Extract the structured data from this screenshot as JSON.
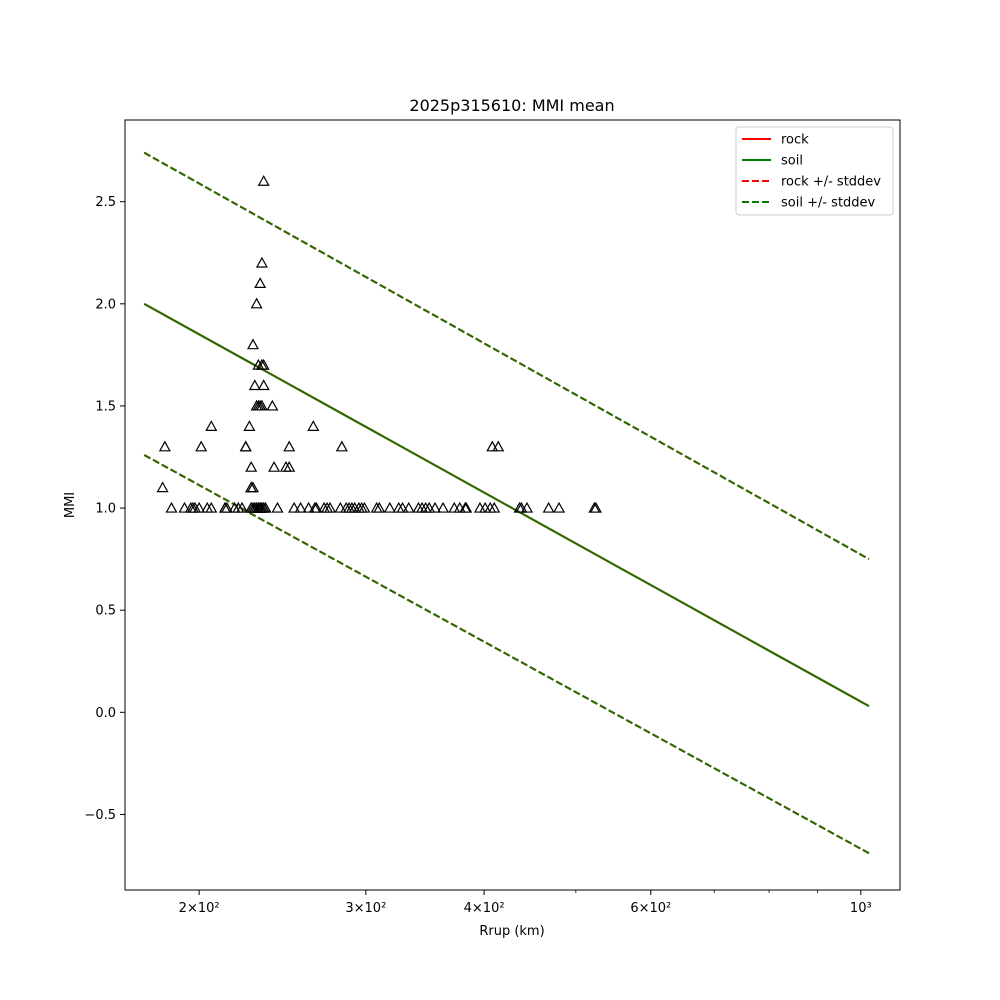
{
  "chart_data": {
    "type": "scatter",
    "title": "2025p315610: MMI mean",
    "xlabel": "Rrup (km)",
    "ylabel": "MMI",
    "xscale": "log",
    "xlim": [
      167,
      1100
    ],
    "ylim": [
      -0.87,
      2.9
    ],
    "grid": false,
    "legend_position": "top-right",
    "x_ticks": [
      {
        "value": 200,
        "label": "2×10²"
      },
      {
        "value": 300,
        "label": "3×10²"
      },
      {
        "value": 400,
        "label": "4×10²"
      },
      {
        "value": 600,
        "label": "6×10²"
      },
      {
        "value": 1000,
        "label": "10³"
      }
    ],
    "y_ticks": [
      {
        "value": -0.5,
        "label": "−0.5"
      },
      {
        "value": 0.0,
        "label": "0.0"
      },
      {
        "value": 0.5,
        "label": "0.5"
      },
      {
        "value": 1.0,
        "label": "1.0"
      },
      {
        "value": 1.5,
        "label": "1.5"
      },
      {
        "value": 2.0,
        "label": "2.0"
      },
      {
        "value": 2.5,
        "label": "2.5"
      }
    ],
    "lines": [
      {
        "name": "rock",
        "color": "#ff0000",
        "dash": false,
        "x": [
          175,
          1020
        ],
        "y": [
          2.0,
          0.03
        ]
      },
      {
        "name": "soil",
        "color": "#008000",
        "dash": false,
        "x": [
          175,
          1020
        ],
        "y": [
          2.0,
          0.03
        ]
      },
      {
        "name": "rock +/- stddev",
        "color": "#ff0000",
        "dash": true,
        "x": [
          175,
          1020
        ],
        "y": [
          2.74,
          0.75
        ]
      },
      {
        "name": "rock +/- stddev",
        "color": "#ff0000",
        "dash": true,
        "x": [
          175,
          1020
        ],
        "y": [
          1.26,
          -0.69
        ]
      },
      {
        "name": "soil +/- stddev",
        "color": "#008000",
        "dash": true,
        "x": [
          175,
          1020
        ],
        "y": [
          2.74,
          0.75
        ]
      },
      {
        "name": "soil +/- stddev",
        "color": "#008000",
        "dash": true,
        "x": [
          175,
          1020
        ],
        "y": [
          1.26,
          -0.69
        ]
      }
    ],
    "overlap_color": "#336600",
    "legend": [
      {
        "label": "rock",
        "color": "#ff0000",
        "dash": false
      },
      {
        "label": "soil",
        "color": "#008000",
        "dash": false
      },
      {
        "label": "rock +/- stddev",
        "color": "#ff0000",
        "dash": true
      },
      {
        "label": "soil +/- stddev",
        "color": "#008000",
        "dash": true
      }
    ],
    "points": {
      "marker": "triangle",
      "color": "#000000",
      "x": [
        234,
        233,
        232,
        230,
        234,
        228,
        231,
        233,
        234,
        229,
        230,
        231,
        233,
        232,
        226,
        224,
        224,
        227,
        227,
        227,
        228,
        229,
        231,
        232,
        233,
        227,
        228,
        229,
        231,
        232,
        233,
        234,
        235,
        206,
        201,
        184,
        183,
        249,
        247,
        249,
        240,
        242,
        264,
        283,
        408,
        414,
        187,
        193,
        196,
        198,
        200,
        204,
        206,
        213,
        214,
        218,
        222,
        235,
        256,
        261,
        265,
        266,
        273,
        275,
        282,
        286,
        288,
        290,
        295,
        297,
        308,
        310,
        318,
        325,
        328,
        333,
        341,
        347,
        350,
        355,
        362,
        372,
        382,
        396,
        401,
        406,
        438,
        444,
        468,
        480,
        523,
        525,
        377,
        230,
        383,
        197,
        213,
        220,
        252,
        271,
        292,
        299,
        344,
        410,
        436,
        227,
        232,
        239
      ],
      "y": [
        2.6,
        2.2,
        2.1,
        2.0,
        1.7,
        1.8,
        1.7,
        1.7,
        1.6,
        1.6,
        1.5,
        1.5,
        1.5,
        1.5,
        1.4,
        1.3,
        1.3,
        1.2,
        1.1,
        1.1,
        1.1,
        1.0,
        1.0,
        1.0,
        1.0,
        1.0,
        1.0,
        1.0,
        1.0,
        1.0,
        1.0,
        1.0,
        1.0,
        1.4,
        1.3,
        1.3,
        1.1,
        1.3,
        1.2,
        1.2,
        1.2,
        1.0,
        1.4,
        1.3,
        1.3,
        1.3,
        1.0,
        1.0,
        1.0,
        1.0,
        1.0,
        1.0,
        1.0,
        1.0,
        1.0,
        1.0,
        1.0,
        1.0,
        1.0,
        1.0,
        1.0,
        1.0,
        1.0,
        1.0,
        1.0,
        1.0,
        1.0,
        1.0,
        1.0,
        1.0,
        1.0,
        1.0,
        1.0,
        1.0,
        1.0,
        1.0,
        1.0,
        1.0,
        1.0,
        1.0,
        1.0,
        1.0,
        1.0,
        1.0,
        1.0,
        1.0,
        1.0,
        1.0,
        1.0,
        1.0,
        1.0,
        1.0,
        1.0,
        1.0,
        1.0,
        1.0,
        1.0,
        1.0,
        1.0,
        1.0,
        1.0,
        1.0,
        1.0,
        1.0,
        1.0,
        1.0,
        1.0,
        1.5
      ]
    }
  }
}
